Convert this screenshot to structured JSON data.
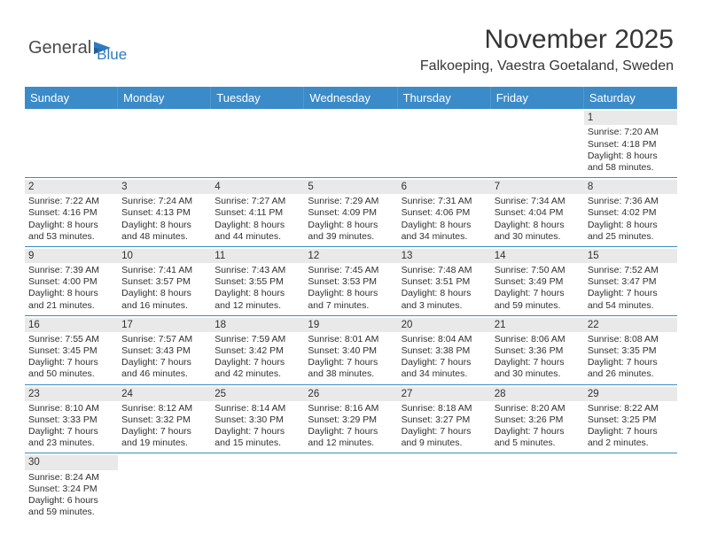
{
  "brand": {
    "part1": "General",
    "part2": "Blue"
  },
  "title": "November 2025",
  "location": "Falkoeping, Vaestra Goetaland, Sweden",
  "colors": {
    "header_bg": "#3b8bc9",
    "header_text": "#ffffff",
    "daynum_bg": "#e9e9e9",
    "text": "#303030",
    "rule": "#3b8bc9"
  },
  "day_headers": [
    "Sunday",
    "Monday",
    "Tuesday",
    "Wednesday",
    "Thursday",
    "Friday",
    "Saturday"
  ],
  "weeks": [
    [
      {
        "empty": true
      },
      {
        "empty": true
      },
      {
        "empty": true
      },
      {
        "empty": true
      },
      {
        "empty": true
      },
      {
        "empty": true
      },
      {
        "n": "1",
        "sr": "Sunrise: 7:20 AM",
        "ss": "Sunset: 4:18 PM",
        "dl": "Daylight: 8 hours and 58 minutes."
      }
    ],
    [
      {
        "n": "2",
        "sr": "Sunrise: 7:22 AM",
        "ss": "Sunset: 4:16 PM",
        "dl": "Daylight: 8 hours and 53 minutes."
      },
      {
        "n": "3",
        "sr": "Sunrise: 7:24 AM",
        "ss": "Sunset: 4:13 PM",
        "dl": "Daylight: 8 hours and 48 minutes."
      },
      {
        "n": "4",
        "sr": "Sunrise: 7:27 AM",
        "ss": "Sunset: 4:11 PM",
        "dl": "Daylight: 8 hours and 44 minutes."
      },
      {
        "n": "5",
        "sr": "Sunrise: 7:29 AM",
        "ss": "Sunset: 4:09 PM",
        "dl": "Daylight: 8 hours and 39 minutes."
      },
      {
        "n": "6",
        "sr": "Sunrise: 7:31 AM",
        "ss": "Sunset: 4:06 PM",
        "dl": "Daylight: 8 hours and 34 minutes."
      },
      {
        "n": "7",
        "sr": "Sunrise: 7:34 AM",
        "ss": "Sunset: 4:04 PM",
        "dl": "Daylight: 8 hours and 30 minutes."
      },
      {
        "n": "8",
        "sr": "Sunrise: 7:36 AM",
        "ss": "Sunset: 4:02 PM",
        "dl": "Daylight: 8 hours and 25 minutes."
      }
    ],
    [
      {
        "n": "9",
        "sr": "Sunrise: 7:39 AM",
        "ss": "Sunset: 4:00 PM",
        "dl": "Daylight: 8 hours and 21 minutes."
      },
      {
        "n": "10",
        "sr": "Sunrise: 7:41 AM",
        "ss": "Sunset: 3:57 PM",
        "dl": "Daylight: 8 hours and 16 minutes."
      },
      {
        "n": "11",
        "sr": "Sunrise: 7:43 AM",
        "ss": "Sunset: 3:55 PM",
        "dl": "Daylight: 8 hours and 12 minutes."
      },
      {
        "n": "12",
        "sr": "Sunrise: 7:45 AM",
        "ss": "Sunset: 3:53 PM",
        "dl": "Daylight: 8 hours and 7 minutes."
      },
      {
        "n": "13",
        "sr": "Sunrise: 7:48 AM",
        "ss": "Sunset: 3:51 PM",
        "dl": "Daylight: 8 hours and 3 minutes."
      },
      {
        "n": "14",
        "sr": "Sunrise: 7:50 AM",
        "ss": "Sunset: 3:49 PM",
        "dl": "Daylight: 7 hours and 59 minutes."
      },
      {
        "n": "15",
        "sr": "Sunrise: 7:52 AM",
        "ss": "Sunset: 3:47 PM",
        "dl": "Daylight: 7 hours and 54 minutes."
      }
    ],
    [
      {
        "n": "16",
        "sr": "Sunrise: 7:55 AM",
        "ss": "Sunset: 3:45 PM",
        "dl": "Daylight: 7 hours and 50 minutes."
      },
      {
        "n": "17",
        "sr": "Sunrise: 7:57 AM",
        "ss": "Sunset: 3:43 PM",
        "dl": "Daylight: 7 hours and 46 minutes."
      },
      {
        "n": "18",
        "sr": "Sunrise: 7:59 AM",
        "ss": "Sunset: 3:42 PM",
        "dl": "Daylight: 7 hours and 42 minutes."
      },
      {
        "n": "19",
        "sr": "Sunrise: 8:01 AM",
        "ss": "Sunset: 3:40 PM",
        "dl": "Daylight: 7 hours and 38 minutes."
      },
      {
        "n": "20",
        "sr": "Sunrise: 8:04 AM",
        "ss": "Sunset: 3:38 PM",
        "dl": "Daylight: 7 hours and 34 minutes."
      },
      {
        "n": "21",
        "sr": "Sunrise: 8:06 AM",
        "ss": "Sunset: 3:36 PM",
        "dl": "Daylight: 7 hours and 30 minutes."
      },
      {
        "n": "22",
        "sr": "Sunrise: 8:08 AM",
        "ss": "Sunset: 3:35 PM",
        "dl": "Daylight: 7 hours and 26 minutes."
      }
    ],
    [
      {
        "n": "23",
        "sr": "Sunrise: 8:10 AM",
        "ss": "Sunset: 3:33 PM",
        "dl": "Daylight: 7 hours and 23 minutes."
      },
      {
        "n": "24",
        "sr": "Sunrise: 8:12 AM",
        "ss": "Sunset: 3:32 PM",
        "dl": "Daylight: 7 hours and 19 minutes."
      },
      {
        "n": "25",
        "sr": "Sunrise: 8:14 AM",
        "ss": "Sunset: 3:30 PM",
        "dl": "Daylight: 7 hours and 15 minutes."
      },
      {
        "n": "26",
        "sr": "Sunrise: 8:16 AM",
        "ss": "Sunset: 3:29 PM",
        "dl": "Daylight: 7 hours and 12 minutes."
      },
      {
        "n": "27",
        "sr": "Sunrise: 8:18 AM",
        "ss": "Sunset: 3:27 PM",
        "dl": "Daylight: 7 hours and 9 minutes."
      },
      {
        "n": "28",
        "sr": "Sunrise: 8:20 AM",
        "ss": "Sunset: 3:26 PM",
        "dl": "Daylight: 7 hours and 5 minutes."
      },
      {
        "n": "29",
        "sr": "Sunrise: 8:22 AM",
        "ss": "Sunset: 3:25 PM",
        "dl": "Daylight: 7 hours and 2 minutes."
      }
    ],
    [
      {
        "n": "30",
        "sr": "Sunrise: 8:24 AM",
        "ss": "Sunset: 3:24 PM",
        "dl": "Daylight: 6 hours and 59 minutes."
      },
      {
        "empty": true
      },
      {
        "empty": true
      },
      {
        "empty": true
      },
      {
        "empty": true
      },
      {
        "empty": true
      },
      {
        "empty": true
      }
    ]
  ]
}
